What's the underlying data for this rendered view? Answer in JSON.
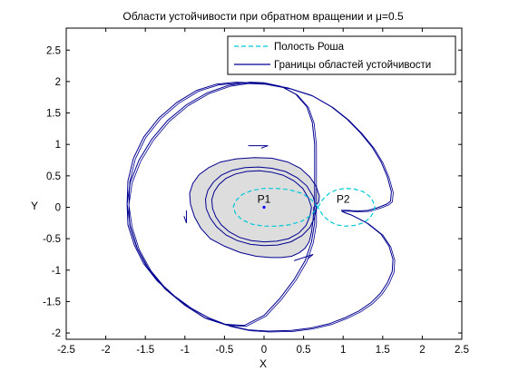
{
  "chart_data": {
    "type": "line",
    "title": "Области устойчивости при обратном вращении и μ=0.5",
    "xlabel": "X",
    "ylabel": "Y",
    "xlim": [
      -2.5,
      2.5
    ],
    "ylim": [
      -2.1,
      2.85
    ],
    "x_ticks": [
      -2.5,
      -2,
      -1.5,
      -1,
      -0.5,
      0,
      0.5,
      1,
      1.5,
      2,
      2.5
    ],
    "x_tick_labels": [
      "-2.5",
      "-2",
      "-1.5",
      "-1",
      "-0.5",
      "0",
      "0.5",
      "1",
      "1.5",
      "2",
      "2.5"
    ],
    "y_ticks": [
      -2,
      -1.5,
      -1,
      -0.5,
      0,
      0.5,
      1,
      1.5,
      2,
      2.5
    ],
    "y_tick_labels": [
      "-2",
      "-1.5",
      "-1",
      "-0.5",
      "0",
      "0.5",
      "1",
      "1.5",
      "2",
      "2.5"
    ],
    "grid": false,
    "legend_position": "top-right",
    "legend": [
      {
        "label": "Полость Роша",
        "style": "dashed",
        "color": "#00c8d8"
      },
      {
        "label": "Границы областей устойчивости",
        "style": "solid",
        "color": "#000090"
      }
    ],
    "annotations": [
      {
        "text": "P1",
        "x": 0.0,
        "y": 0.13
      },
      {
        "text": "P2",
        "x": 1.0,
        "y": 0.13
      }
    ],
    "points": [
      {
        "name": "P1",
        "x": 0.0,
        "y": 0.0,
        "color": "#0000ff"
      }
    ],
    "series": [
      {
        "role": "outer_boundary",
        "color": "#000090",
        "x": [
          0.64,
          0.6,
          0.52,
          0.38,
          0.2,
          0.0,
          -0.25,
          -0.5,
          -0.75,
          -1.0,
          -1.25,
          -1.45,
          -1.6,
          -1.69,
          -1.73,
          -1.72,
          -1.65,
          -1.52,
          -1.33,
          -1.1,
          -0.85,
          -0.6,
          -0.35,
          0.0,
          0.3,
          0.6,
          0.85,
          1.05,
          1.22,
          1.37,
          1.48,
          1.56,
          1.61,
          1.6,
          1.55,
          1.45,
          1.32,
          1.18,
          1.05,
          0.98,
          0.99,
          1.1,
          1.3,
          1.48,
          1.58,
          1.63,
          1.62,
          1.56,
          1.47,
          1.35,
          1.2,
          1.02,
          0.83,
          0.6,
          0.35,
          0.05,
          -0.2,
          -0.45,
          -0.7,
          -0.93,
          -1.15,
          -1.35,
          -1.52,
          -1.64,
          -1.72,
          -1.73,
          -1.69,
          -1.58,
          -1.42,
          -1.22,
          -0.98,
          -0.72,
          -0.45,
          -0.18,
          0.0,
          0.22,
          0.4,
          0.54,
          0.61,
          0.64
        ],
        "y": [
          -0.25,
          -0.55,
          -0.85,
          -1.15,
          -1.45,
          -1.72,
          -1.88,
          -1.86,
          -1.76,
          -1.56,
          -1.3,
          -1.0,
          -0.66,
          -0.3,
          0.05,
          0.42,
          0.78,
          1.12,
          1.42,
          1.67,
          1.86,
          1.96,
          1.99,
          1.97,
          1.9,
          1.78,
          1.6,
          1.4,
          1.18,
          0.95,
          0.72,
          0.48,
          0.25,
          0.1,
          0.05,
          0.0,
          -0.05,
          -0.06,
          -0.05,
          -0.05,
          -0.07,
          -0.12,
          -0.25,
          -0.43,
          -0.62,
          -0.83,
          -1.02,
          -1.2,
          -1.37,
          -1.52,
          -1.65,
          -1.76,
          -1.85,
          -1.92,
          -1.96,
          -1.97,
          -1.95,
          -1.88,
          -1.76,
          -1.6,
          -1.4,
          -1.17,
          -0.9,
          -0.6,
          -0.28,
          0.05,
          0.4,
          0.75,
          1.08,
          1.38,
          1.63,
          1.82,
          1.94,
          1.99,
          1.98,
          1.92,
          1.8,
          1.6,
          1.35,
          1.0
        ]
      },
      {
        "role": "inner_gray_region",
        "color": "#000090",
        "fill": "#dddddd",
        "x": [
          0.63,
          0.62,
          0.6,
          0.57,
          0.52,
          0.45,
          0.35,
          0.22,
          0.08,
          -0.1,
          -0.3,
          -0.5,
          -0.68,
          -0.8,
          -0.88,
          -0.93,
          -0.94,
          -0.9,
          -0.82,
          -0.7,
          -0.55,
          -0.35,
          -0.12,
          0.1,
          0.3,
          0.46,
          0.58,
          0.66,
          0.7,
          0.69,
          0.66,
          0.63
        ],
        "y": [
          0.0,
          -0.2,
          -0.4,
          -0.55,
          -0.65,
          -0.72,
          -0.78,
          -0.8,
          -0.8,
          -0.78,
          -0.72,
          -0.62,
          -0.5,
          -0.33,
          -0.15,
          0.05,
          0.22,
          0.38,
          0.52,
          0.63,
          0.72,
          0.77,
          0.79,
          0.78,
          0.72,
          0.62,
          0.48,
          0.33,
          0.18,
          0.08,
          0.04,
          0.0
        ]
      },
      {
        "role": "inner_ring_outer",
        "color": "#000090",
        "x": [
          0.66,
          0.64,
          0.58,
          0.48,
          0.34,
          0.17,
          0.0,
          -0.17,
          -0.34,
          -0.48,
          -0.6,
          -0.68,
          -0.73,
          -0.74,
          -0.71,
          -0.64,
          -0.54,
          -0.4,
          -0.24,
          -0.07,
          0.1,
          0.27,
          0.42,
          0.54,
          0.62,
          0.66
        ],
        "y": [
          0.0,
          -0.16,
          -0.32,
          -0.45,
          -0.55,
          -0.6,
          -0.61,
          -0.59,
          -0.53,
          -0.44,
          -0.31,
          -0.17,
          -0.02,
          0.13,
          0.27,
          0.4,
          0.51,
          0.59,
          0.63,
          0.64,
          0.62,
          0.57,
          0.47,
          0.34,
          0.17,
          0.0
        ]
      },
      {
        "role": "inner_ring_inner",
        "color": "#000090",
        "x": [
          0.6,
          0.58,
          0.53,
          0.44,
          0.31,
          0.16,
          0.0,
          -0.16,
          -0.31,
          -0.44,
          -0.54,
          -0.61,
          -0.65,
          -0.66,
          -0.63,
          -0.57,
          -0.48,
          -0.36,
          -0.22,
          -0.06,
          0.09,
          0.24,
          0.38,
          0.49,
          0.56,
          0.6
        ],
        "y": [
          0.0,
          -0.14,
          -0.29,
          -0.41,
          -0.5,
          -0.54,
          -0.55,
          -0.53,
          -0.48,
          -0.39,
          -0.28,
          -0.15,
          -0.02,
          0.12,
          0.25,
          0.36,
          0.46,
          0.53,
          0.57,
          0.58,
          0.56,
          0.51,
          0.42,
          0.3,
          0.15,
          0.0
        ]
      },
      {
        "role": "roche_lobe_p1",
        "color": "#00c8d8",
        "dashed": true,
        "x": [
          0.68,
          0.6,
          0.48,
          0.32,
          0.15,
          0.0,
          -0.15,
          -0.28,
          -0.36,
          -0.39,
          -0.36,
          -0.28,
          -0.15,
          0.0,
          0.15,
          0.32,
          0.48,
          0.6,
          0.68
        ],
        "y": [
          0.0,
          0.12,
          0.22,
          0.28,
          0.3,
          0.3,
          0.27,
          0.2,
          0.1,
          0.0,
          -0.1,
          -0.2,
          -0.27,
          -0.3,
          -0.3,
          -0.28,
          -0.22,
          -0.12,
          0.0
        ]
      },
      {
        "role": "roche_lobe_p2",
        "color": "#00c8d8",
        "dashed": true,
        "x": [
          0.68,
          0.74,
          0.82,
          0.92,
          1.03,
          1.14,
          1.25,
          1.33,
          1.38,
          1.4,
          1.38,
          1.33,
          1.25,
          1.14,
          1.03,
          0.92,
          0.82,
          0.74,
          0.68
        ],
        "y": [
          0.0,
          0.12,
          0.22,
          0.28,
          0.3,
          0.29,
          0.25,
          0.18,
          0.09,
          0.0,
          -0.09,
          -0.18,
          -0.25,
          -0.29,
          -0.3,
          -0.28,
          -0.22,
          -0.12,
          0.0
        ]
      }
    ],
    "arrows": [
      {
        "x": [
          -0.2,
          0.05
        ],
        "y": [
          0.98,
          0.98
        ]
      },
      {
        "x": [
          -0.98,
          -0.98
        ],
        "y": [
          -0.05,
          -0.25
        ]
      },
      {
        "x": [
          0.38,
          0.62
        ],
        "y": [
          -0.85,
          -0.75
        ]
      }
    ]
  }
}
